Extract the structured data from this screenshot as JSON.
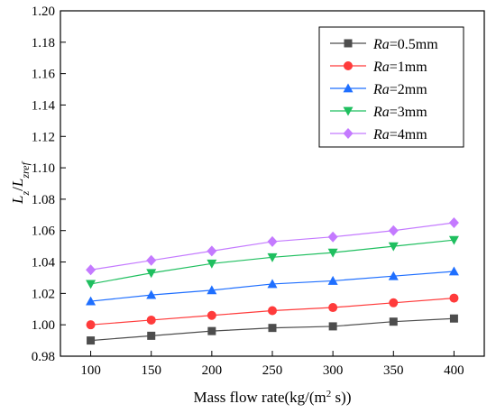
{
  "chart_data": {
    "type": "line",
    "xlabel": "Mass flow rate(kg/(m² s))",
    "ylabel": "L_z/L_zref",
    "xlim": [
      75,
      425
    ],
    "ylim": [
      0.98,
      1.2
    ],
    "x_ticks": [
      "100",
      "150",
      "200",
      "250",
      "300",
      "350",
      "400"
    ],
    "y_ticks": [
      "0.98",
      "1.00",
      "1.02",
      "1.04",
      "1.06",
      "1.08",
      "1.10",
      "1.12",
      "1.14",
      "1.16",
      "1.18",
      "1.20"
    ],
    "x": [
      100,
      150,
      200,
      250,
      300,
      350,
      400
    ],
    "grid": false,
    "legend_position": "top-right",
    "series": [
      {
        "name": "Ra=0.5mm",
        "name_italic": "Ra",
        "name_rest": "=0.5mm",
        "color": "#4d4d4d",
        "marker": "square",
        "values": [
          0.99,
          0.993,
          0.996,
          0.998,
          0.999,
          1.002,
          1.004
        ]
      },
      {
        "name": "Ra=1mm",
        "name_italic": "Ra",
        "name_rest": "=1mm",
        "color": "#ff3b3b",
        "marker": "circle",
        "values": [
          1.0,
          1.003,
          1.006,
          1.009,
          1.011,
          1.014,
          1.017
        ]
      },
      {
        "name": "Ra=2mm",
        "name_italic": "Ra",
        "name_rest": "=2mm",
        "color": "#1f6fff",
        "marker": "triangle-up",
        "values": [
          1.015,
          1.019,
          1.022,
          1.026,
          1.028,
          1.031,
          1.034
        ]
      },
      {
        "name": "Ra=3mm",
        "name_italic": "Ra",
        "name_rest": "=3mm",
        "color": "#1fbf5f",
        "marker": "triangle-down",
        "values": [
          1.026,
          1.033,
          1.039,
          1.043,
          1.046,
          1.05,
          1.054
        ]
      },
      {
        "name": "Ra=4mm",
        "name_italic": "Ra",
        "name_rest": "=4mm",
        "color": "#c47aff",
        "marker": "diamond",
        "values": [
          1.035,
          1.041,
          1.047,
          1.053,
          1.056,
          1.06,
          1.065
        ]
      }
    ]
  }
}
